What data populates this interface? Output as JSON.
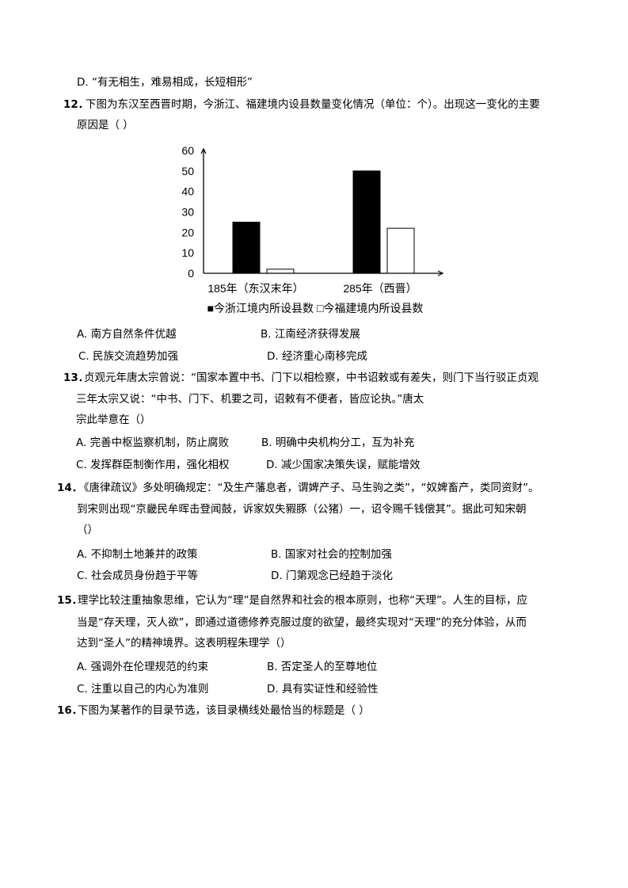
{
  "q11": {
    "option_d": "D. “有无相生，难易相成，长短相形”"
  },
  "q12": {
    "number": "12．",
    "stem_line1": "下图为东汉至西晋时期，今浙江、福建境内设县数量变化情况（单位：个）。出现这一变化的主要",
    "stem_line2": "原因是（ ）",
    "options": [
      "A. 南方自然条件优越",
      "B. 江南经济获得发展",
      "C. 民族交流趋势加强",
      "D. 经济重心南移完成"
    ]
  },
  "chart_data": {
    "type": "bar",
    "categories": [
      "185年（东汉末年）",
      "285年（西晋）"
    ],
    "series": [
      {
        "name": "今浙江境内所设县数",
        "values": [
          25,
          50
        ],
        "color": "#000000"
      },
      {
        "name": "今福建境内所设县数",
        "values": [
          2,
          22
        ],
        "color": "#ffffff"
      }
    ],
    "ylim": [
      0,
      60
    ],
    "yticks": [
      0,
      10,
      20,
      30,
      40,
      50,
      60
    ],
    "grid": false,
    "legend": "bottom",
    "legend_text": "■今浙江境内所设县数 □今福建境内所设县数"
  },
  "q13": {
    "number": "13．",
    "stem_line1": "贞观元年唐太宗曾说：“国家本置中书、门下以相检察，中书诏敕或有差失，则门下当行驳正贞观",
    "stem_line2": "三年太宗又说：“中书、门下、机要之司，诏敕有不便者，皆应论执。”唐太",
    "stem_line3": "宗此举意在（）",
    "options": [
      "A. 完善中枢监察机制，防止腐败",
      "B. 明确中央机构分工，互为补充",
      "C. 发挥群臣制衡作用，强化相权",
      "D. 减少国家决策失误，赋能增效"
    ]
  },
  "q14": {
    "number": "14．",
    "stem_line1": "《唐律疏议》多处明确规定：“及生产藩息者，谓婢产子、马生驹之类”，“奴婢畜产，类同资财”。",
    "stem_line2": "到宋则出现“京畿民牟晖击登闻鼓，诉家奴失豭豚（公猪）一，诏令赐千钱偿其”。据此可知宋朝",
    "stem_line3": "（）",
    "options": [
      "A. 不抑制土地兼并的政策",
      "B. 国家对社会的控制加强",
      "C. 社会成员身份趋于平等",
      "D. 门第观念已经趋于淡化"
    ]
  },
  "q15": {
    "number": "15．",
    "stem_line1": "理学比较注重抽象思维，它认为“理”是自然界和社会的根本原则，也称“天理”。人生的目标，应",
    "stem_line2": "当是“存天理，灭人欲”，即通过道德修养克服过度的欲望，最终实现对“天理”的充分体验，从而",
    "stem_line3": "达到“圣人”的精神境界。这表明程朱理学（）",
    "options": [
      "A. 强调外在伦理规范的约束",
      "B. 否定圣人的至尊地位",
      "C. 注重以自己的内心为准则",
      "D. 具有实证性和经验性"
    ]
  },
  "q16": {
    "number": "16．",
    "stem_line1": "下图为某著作的目录节选，该目录横线处最恰当的标题是（ ）"
  }
}
